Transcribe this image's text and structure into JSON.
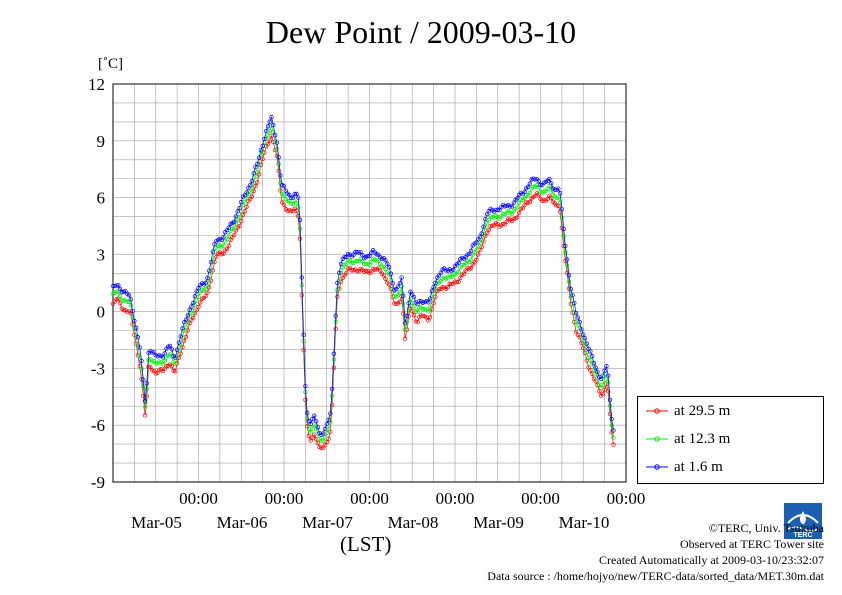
{
  "chart_data": {
    "type": "line",
    "title": "Dew Point / 2009-03-10",
    "ylabel": "[˚C]",
    "xlabel": "(LST)",
    "ylim": [
      -9,
      12
    ],
    "yticks": [
      "12",
      "9",
      "6",
      "3",
      "0",
      "-3",
      "-6",
      "-9"
    ],
    "xlim_days": [
      0,
      6
    ],
    "xticks": [
      {
        "time": "00:00",
        "date": "Mar-05"
      },
      {
        "time": "00:00",
        "date": "Mar-06"
      },
      {
        "time": "00:00",
        "date": "Mar-07"
      },
      {
        "time": "00:00",
        "date": "Mar-08"
      },
      {
        "time": "00:00",
        "date": "Mar-09"
      },
      {
        "time": "00:00",
        "date": "Mar-10"
      }
    ],
    "grid": true,
    "legend_position": "bottom-right",
    "series": [
      {
        "name": "at 29.5 m",
        "color": "#ff0000",
        "offset": -0.45
      },
      {
        "name": "at 12.3 m",
        "color": "#00ee00",
        "offset": 0.0
      },
      {
        "name": "at 1.6 m",
        "color": "#0000ff",
        "offset": 0.4
      }
    ],
    "base_profile": [
      [
        0.0,
        0.8
      ],
      [
        0.05,
        1.1
      ],
      [
        0.12,
        0.6
      ],
      [
        0.2,
        0.4
      ],
      [
        0.26,
        -1.0
      ],
      [
        0.32,
        -2.5
      ],
      [
        0.38,
        -5.3
      ],
      [
        0.42,
        -2.3
      ],
      [
        0.5,
        -2.8
      ],
      [
        0.58,
        -2.7
      ],
      [
        0.66,
        -2.2
      ],
      [
        0.72,
        -2.9
      ],
      [
        0.8,
        -1.5
      ],
      [
        0.86,
        -0.8
      ],
      [
        0.92,
        0.0
      ],
      [
        1.0,
        0.8
      ],
      [
        1.1,
        1.3
      ],
      [
        1.2,
        3.3
      ],
      [
        1.3,
        3.6
      ],
      [
        1.4,
        4.3
      ],
      [
        1.5,
        5.3
      ],
      [
        1.6,
        6.3
      ],
      [
        1.7,
        7.5
      ],
      [
        1.78,
        9.0
      ],
      [
        1.85,
        9.8
      ],
      [
        1.92,
        8.5
      ],
      [
        1.97,
        6.4
      ],
      [
        2.02,
        5.9
      ],
      [
        2.08,
        5.6
      ],
      [
        2.13,
        5.9
      ],
      [
        2.18,
        5.5
      ],
      [
        2.22,
        -0.5
      ],
      [
        2.26,
        -5.5
      ],
      [
        2.3,
        -6.3
      ],
      [
        2.36,
        -6.0
      ],
      [
        2.42,
        -6.9
      ],
      [
        2.48,
        -6.6
      ],
      [
        2.55,
        -5.8
      ],
      [
        2.62,
        1.0
      ],
      [
        2.66,
        2.1
      ],
      [
        2.75,
        2.6
      ],
      [
        2.85,
        2.7
      ],
      [
        2.95,
        2.5
      ],
      [
        3.05,
        2.7
      ],
      [
        3.15,
        2.5
      ],
      [
        3.22,
        2.0
      ],
      [
        3.3,
        0.7
      ],
      [
        3.38,
        1.3
      ],
      [
        3.42,
        -1.2
      ],
      [
        3.48,
        0.8
      ],
      [
        3.55,
        -0.1
      ],
      [
        3.62,
        0.2
      ],
      [
        3.7,
        0.1
      ],
      [
        3.78,
        1.3
      ],
      [
        3.84,
        1.8
      ],
      [
        3.92,
        1.7
      ],
      [
        4.0,
        2.0
      ],
      [
        4.08,
        2.3
      ],
      [
        4.18,
        2.8
      ],
      [
        4.28,
        3.4
      ],
      [
        4.38,
        4.8
      ],
      [
        4.48,
        5.0
      ],
      [
        4.58,
        5.1
      ],
      [
        4.68,
        5.3
      ],
      [
        4.78,
        5.8
      ],
      [
        4.88,
        6.4
      ],
      [
        4.95,
        6.6
      ],
      [
        5.03,
        6.3
      ],
      [
        5.1,
        6.5
      ],
      [
        5.18,
        6.0
      ],
      [
        5.22,
        6.2
      ],
      [
        5.28,
        3.5
      ],
      [
        5.35,
        1.0
      ],
      [
        5.42,
        -0.6
      ],
      [
        5.5,
        -1.5
      ],
      [
        5.58,
        -2.6
      ],
      [
        5.66,
        -3.5
      ],
      [
        5.72,
        -4.0
      ],
      [
        5.78,
        -3.2
      ],
      [
        5.82,
        -5.5
      ],
      [
        5.86,
        -6.8
      ]
    ]
  },
  "legend": {
    "items": [
      "at 29.5 m",
      "at 12.3 m",
      "at 1.6 m"
    ]
  },
  "credits": {
    "line1": "©TERC, Univ. Tsukuba",
    "line2": "Observed at TERC Tower site",
    "line3": "Created Automatically at 2009-03-10/23:32:07",
    "line4": "Data source : /home/hojyo/new/TERC-data/sorted_data/MET.30m.dat"
  },
  "logo": {
    "text": "TERC"
  }
}
